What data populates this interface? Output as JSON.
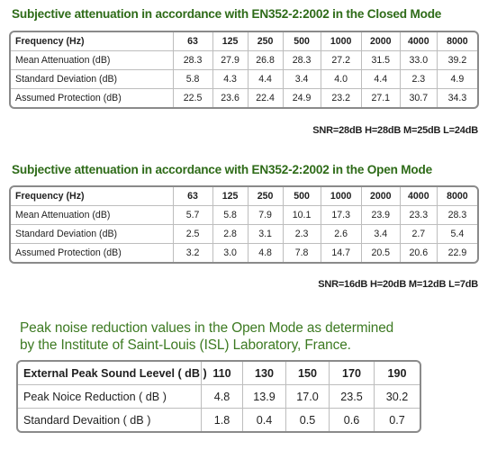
{
  "closed_mode": {
    "title": "Subjective attenuation in accordance with EN352-2:2002 in the Closed Mode",
    "header": [
      "Frequency (Hz)",
      "63",
      "125",
      "250",
      "500",
      "1000",
      "2000",
      "4000",
      "8000"
    ],
    "rows": [
      [
        "Mean Attenuation (dB)",
        "28.3",
        "27.9",
        "26.8",
        "28.3",
        "27.2",
        "31.5",
        "33.0",
        "39.2"
      ],
      [
        "Standard Deviation (dB)",
        "5.8",
        "4.3",
        "4.4",
        "3.4",
        "4.0",
        "4.4",
        "2.3",
        "4.9"
      ],
      [
        "Assumed Protection (dB)",
        "22.5",
        "23.6",
        "22.4",
        "24.9",
        "23.2",
        "27.1",
        "30.7",
        "34.3"
      ]
    ],
    "snr": "SNR=28dB H=28dB M=25dB L=24dB"
  },
  "open_mode": {
    "title": "Subjective attenuation in accordance with EN352-2:2002 in the Open Mode",
    "header": [
      "Frequency (Hz)",
      "63",
      "125",
      "250",
      "500",
      "1000",
      "2000",
      "4000",
      "8000"
    ],
    "rows": [
      [
        "Mean Attenuation (dB)",
        "5.7",
        "5.8",
        "7.9",
        "10.1",
        "17.3",
        "23.9",
        "23.3",
        "28.3"
      ],
      [
        "Standard Deviation (dB)",
        "2.5",
        "2.8",
        "3.1",
        "2.3",
        "2.6",
        "3.4",
        "2.7",
        "5.4"
      ],
      [
        "Assumed Protection (dB)",
        "3.2",
        "3.0",
        "4.8",
        "7.8",
        "14.7",
        "20.5",
        "20.6",
        "22.9"
      ]
    ],
    "snr": "SNR=16dB H=20dB M=12dB L=7dB"
  },
  "peak_noise": {
    "title_line1": "Peak noise reduction values in the Open Mode as determined",
    "title_line2": "by the Institute of Saint-Louis (ISL) Laboratory, France.",
    "header": [
      "External Peak Sound Leevel ( dB )",
      "110",
      "130",
      "150",
      "170",
      "190"
    ],
    "rows": [
      [
        "Peak Noice Reduction ( dB )",
        "4.8",
        "13.9",
        "17.0",
        "23.5",
        "30.2"
      ],
      [
        "Standard Devaition ( dB )",
        "1.8",
        "0.4",
        "0.5",
        "0.6",
        "0.7"
      ]
    ]
  }
}
